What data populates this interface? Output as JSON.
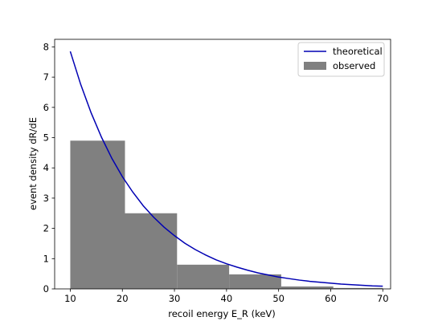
{
  "chart_data": {
    "type": "bar",
    "xlabel": "recoil energy E_R (keV)",
    "ylabel": "event density dR/dE",
    "xlim": [
      7,
      71.5
    ],
    "ylim": [
      0,
      8.25
    ],
    "xticks": [
      10,
      20,
      30,
      40,
      50,
      60,
      70
    ],
    "yticks": [
      0,
      1,
      2,
      3,
      4,
      5,
      6,
      7,
      8
    ],
    "grid": false,
    "legend_position": "top-right",
    "legend": [
      {
        "label": "theoretical",
        "kind": "line",
        "color": "#0000b3"
      },
      {
        "label": "observed",
        "kind": "patch",
        "color": "#808080"
      }
    ],
    "histogram": {
      "name": "observed",
      "color": "#808080",
      "bins": [
        {
          "x0": 10,
          "x1": 20.5,
          "value": 4.9
        },
        {
          "x0": 20.5,
          "x1": 30.5,
          "value": 2.5
        },
        {
          "x0": 30.5,
          "x1": 40.5,
          "value": 0.8
        },
        {
          "x0": 40.5,
          "x1": 50.5,
          "value": 0.48
        },
        {
          "x0": 50.5,
          "x1": 60.5,
          "value": 0.08
        },
        {
          "x0": 60.5,
          "x1": 70,
          "value": 0.03
        }
      ]
    },
    "curve": {
      "name": "theoretical",
      "color": "#0000b3",
      "x": [
        10,
        12,
        14,
        16,
        18,
        20,
        22,
        24,
        26,
        28,
        30,
        32,
        34,
        36,
        38,
        40,
        42,
        44,
        46,
        48,
        50,
        52,
        54,
        56,
        58,
        60,
        62,
        64,
        66,
        68,
        70
      ],
      "y": [
        7.85,
        6.76,
        5.82,
        5.01,
        4.31,
        3.71,
        3.2,
        2.75,
        2.37,
        2.04,
        1.76,
        1.51,
        1.3,
        1.12,
        0.96,
        0.83,
        0.72,
        0.62,
        0.53,
        0.46,
        0.39,
        0.34,
        0.29,
        0.25,
        0.22,
        0.19,
        0.16,
        0.14,
        0.12,
        0.1,
        0.09
      ]
    }
  }
}
